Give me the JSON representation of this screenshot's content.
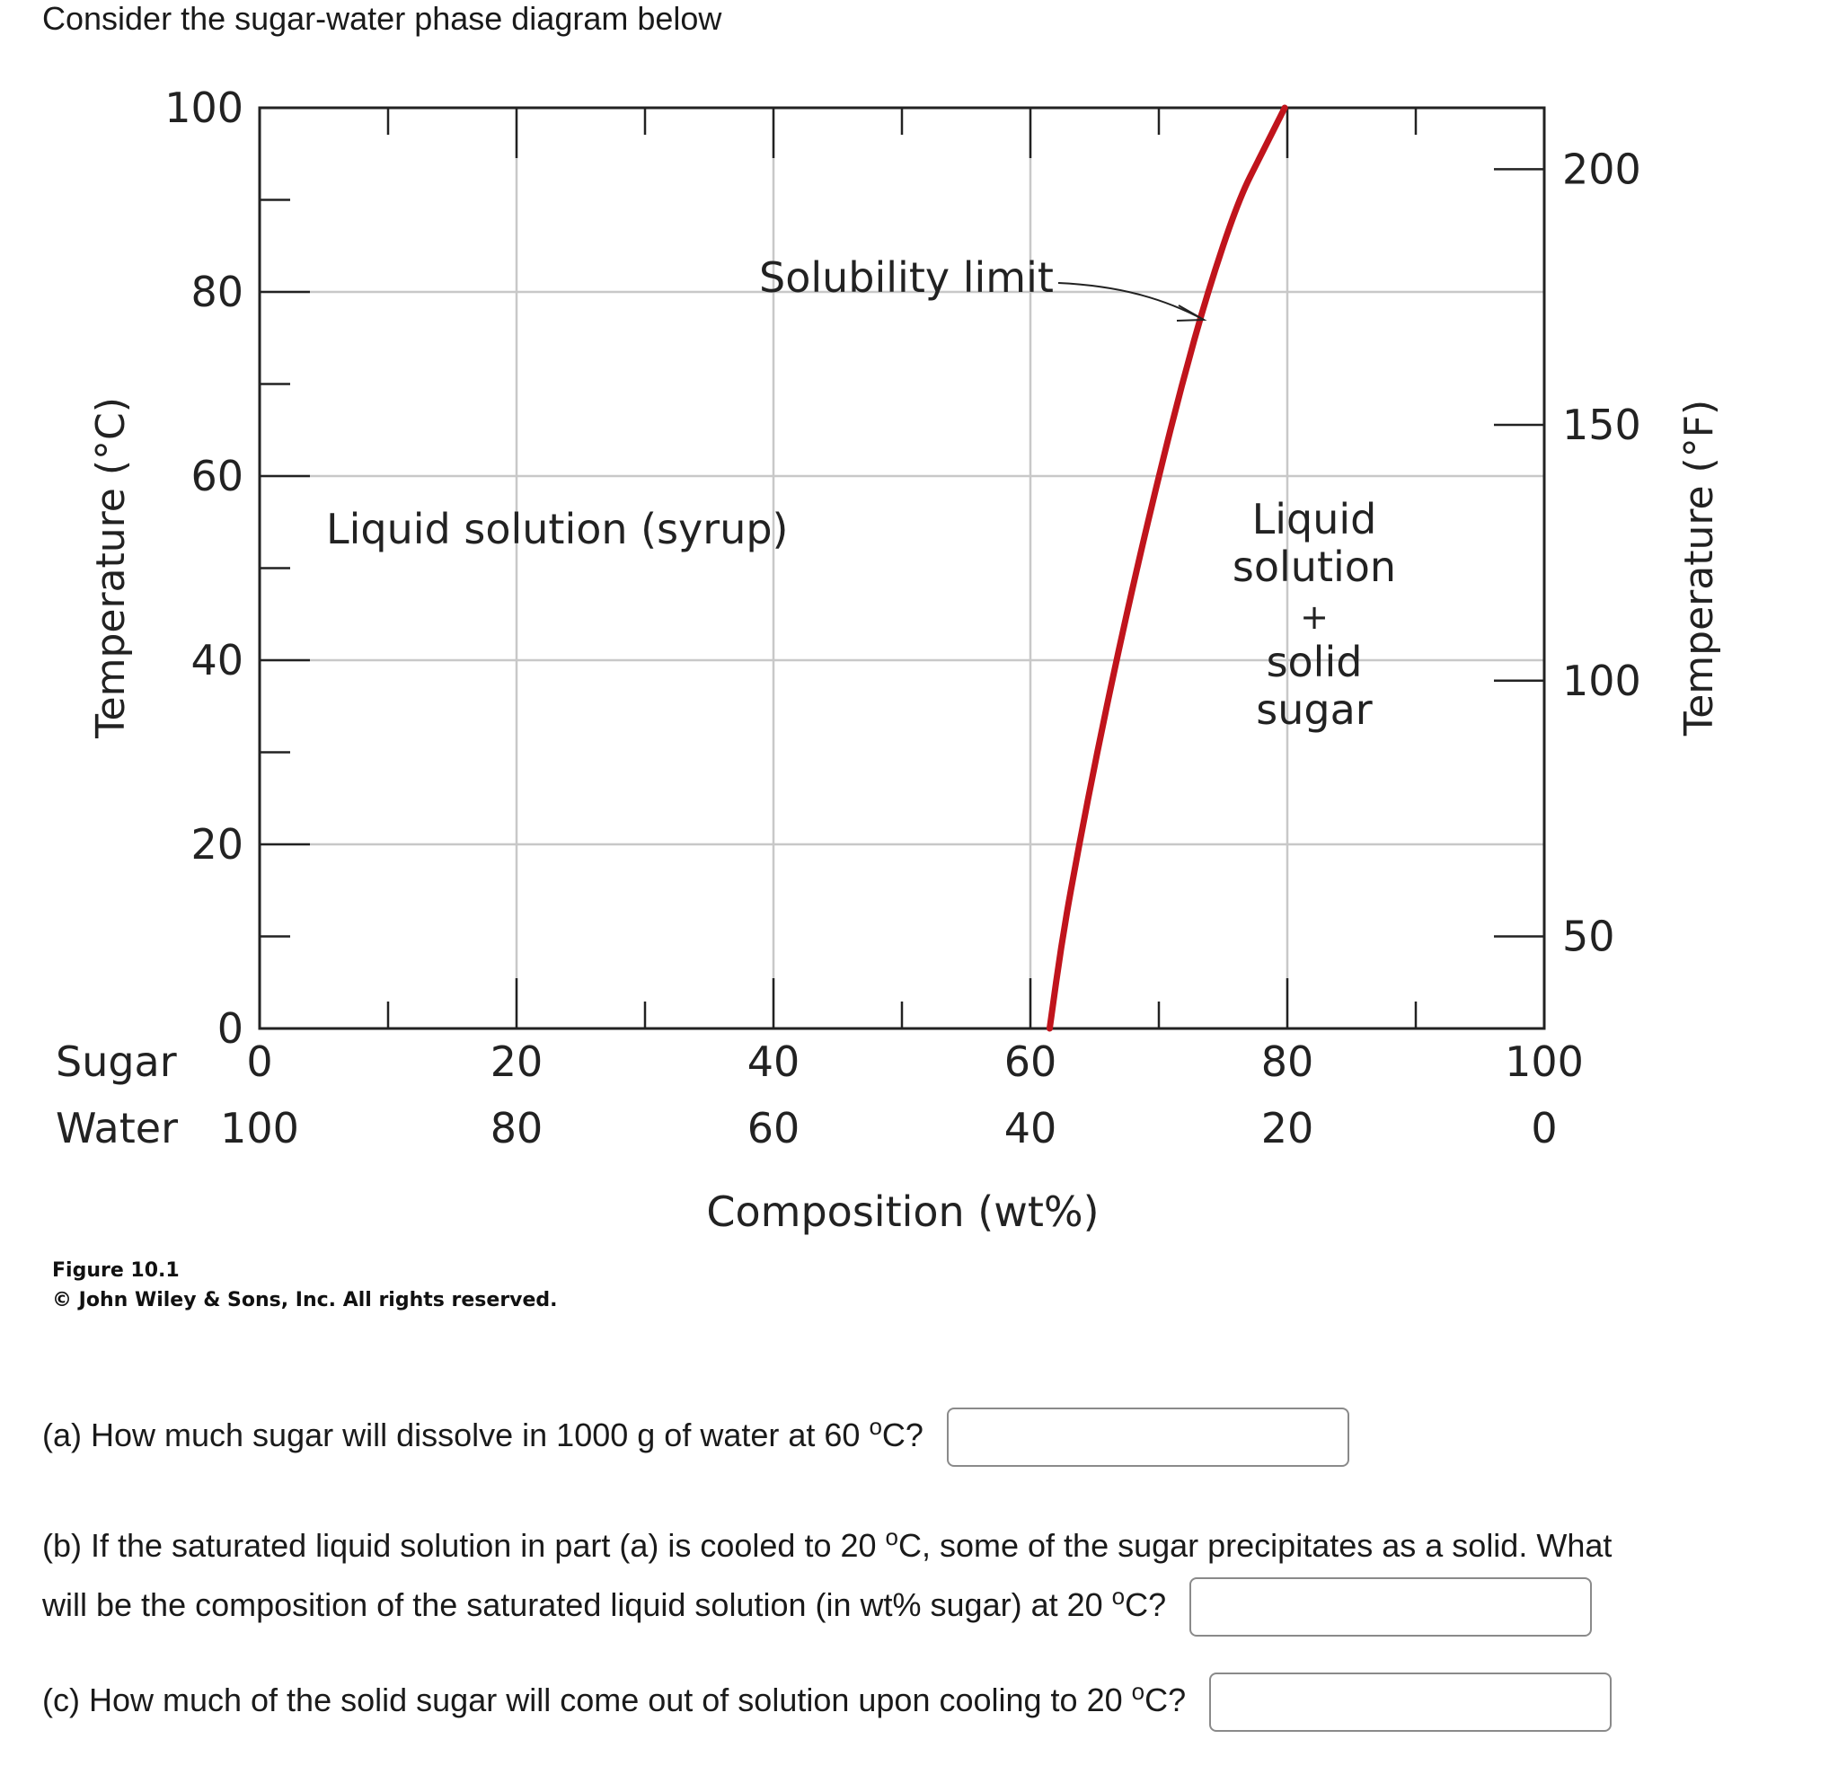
{
  "intro": "Consider the sugar-water phase diagram below",
  "chart_data": {
    "type": "line",
    "x_sugar_ticks": [
      "0",
      "20",
      "40",
      "60",
      "80",
      "100"
    ],
    "x_water_ticks": [
      "100",
      "80",
      "60",
      "40",
      "20",
      "0"
    ],
    "x_row_label_sugar": "Sugar",
    "x_row_label_water": "Water",
    "xlabel": "Composition (wt%)",
    "ylabel_left": "Temperature (°C)",
    "ylabel_right": "Temperature (°F)",
    "y_left_ticks": [
      "0",
      "20",
      "40",
      "60",
      "80",
      "100"
    ],
    "y_right_ticks": [
      "50",
      "100",
      "150",
      "200"
    ],
    "xlim": [
      0,
      100
    ],
    "ylim": [
      0,
      100
    ],
    "grid": true,
    "series": [
      {
        "color": "#c0141c",
        "x": [
          61.5,
          62.5,
          63.8,
          65.2,
          66.7,
          68.3,
          70.0,
          71.8,
          73.8,
          76.2,
          78.0,
          79.8
        ],
        "y": [
          0,
          10,
          20,
          30,
          40,
          50,
          60,
          70,
          80,
          90,
          95,
          100
        ]
      }
    ],
    "annotations": {
      "solubility": "Solubility limit",
      "liquid_region": "Liquid solution (syrup)",
      "two_phase": [
        "Liquid",
        "solution",
        "+",
        "solid",
        "sugar"
      ]
    },
    "color_grid": "#c8c8c8"
  },
  "figure": {
    "label": "Figure 10.1",
    "copyright": "© John Wiley & Sons, Inc. All rights reserved."
  },
  "questions": {
    "a": {
      "before": "(a) How much sugar will dissolve in 1000 g of water at 60 ",
      "sup": "o",
      "after": "C?"
    },
    "b1": {
      "text": "(b) If the saturated liquid solution in part (a) is cooled to 20 ",
      "sup": "o",
      "after": "C, some of the sugar precipitates as a solid. What"
    },
    "b2": {
      "before": "will be the composition of the saturated liquid solution (in wt% sugar) at 20 ",
      "sup": "o",
      "after": "C?"
    },
    "c": {
      "before": "(c) How much of the solid sugar will come out of solution upon cooling to 20 ",
      "sup": "o",
      "after": "C?"
    }
  }
}
